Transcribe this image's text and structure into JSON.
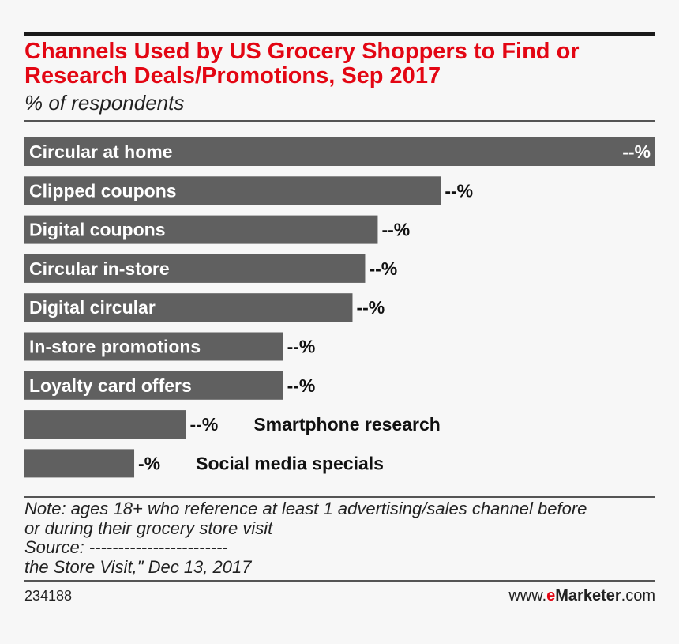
{
  "title_line1": "Channels Used by US Grocery Shoppers to Find or",
  "title_line2": "Research Deals/Promotions, Sep 2017",
  "subtitle": "% of respondents",
  "notes": {
    "line1": "Note: ages 18+ who reference at least 1 advertising/sales channel before",
    "line2": "or during their grocery store visit",
    "line3": "Source: ------------------------",
    "line4": "the Store Visit,\" Dec 13, 2017"
  },
  "footer": {
    "chart_id": "234188",
    "brand_prefix": "www.",
    "brand_e": "e",
    "brand_marketer": "Marketer",
    "brand_suffix": ".com"
  },
  "colors": {
    "title": "#e30613",
    "bar": "#606060",
    "bar_label": "#ffffff",
    "value_label": "#111111"
  },
  "chart_data": {
    "type": "bar",
    "orientation": "horizontal",
    "categories": [
      "Circular at home",
      "Clipped coupons",
      "Digital coupons",
      "Circular in-store",
      "Digital circular",
      "In-store promotions",
      "Loyalty card offers",
      "Smartphone research",
      "Social media specials"
    ],
    "values": [
      50,
      33,
      28,
      27,
      26,
      20.5,
      20.5,
      12.8,
      8.7
    ],
    "value_labels": [
      "--%",
      "--%",
      "--%",
      "--%",
      "--%",
      "--%",
      "--%",
      "--%",
      "-%"
    ],
    "xlim": [
      0,
      50
    ],
    "grid": false
  }
}
